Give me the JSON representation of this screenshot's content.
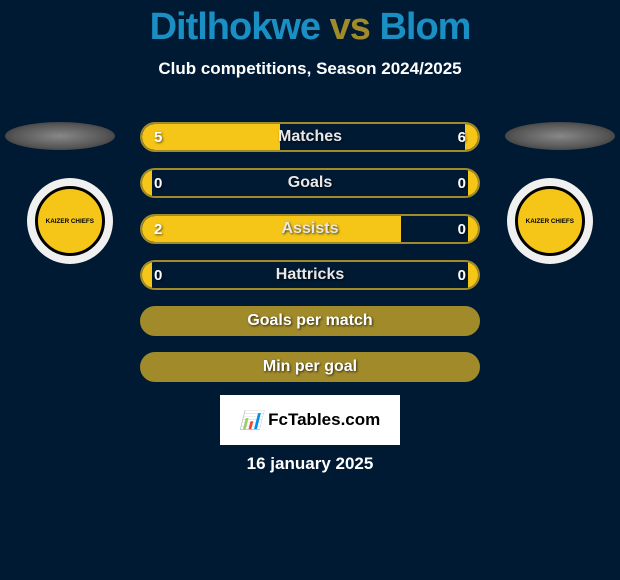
{
  "title": {
    "player1": "Ditlhokwe",
    "player1_color": "#1a8fc4",
    "vs": "vs",
    "vs_color": "#a08a2a",
    "player2": "Blom",
    "player2_color": "#1a8fc4"
  },
  "subtitle": "Club competitions, Season 2024/2025",
  "badges": {
    "left_text": "KAIZER CHIEFS",
    "right_text": "KAIZER CHIEFS",
    "outer_color": "#f0f0f0",
    "inner_color": "#f5c518",
    "border_color": "#000000"
  },
  "stats": {
    "rows": [
      {
        "label": "Matches",
        "left": "5",
        "right": "6",
        "left_pct": 41,
        "right_pct": 4,
        "show_values": true,
        "full": false
      },
      {
        "label": "Goals",
        "left": "0",
        "right": "0",
        "left_pct": 3,
        "right_pct": 3,
        "show_values": true,
        "full": false
      },
      {
        "label": "Assists",
        "left": "2",
        "right": "0",
        "left_pct": 77,
        "right_pct": 3,
        "show_values": true,
        "full": false
      },
      {
        "label": "Hattricks",
        "left": "0",
        "right": "0",
        "left_pct": 3,
        "right_pct": 3,
        "show_values": true,
        "full": false
      },
      {
        "label": "Goals per match",
        "left": "",
        "right": "",
        "left_pct": 0,
        "right_pct": 0,
        "show_values": false,
        "full": true
      },
      {
        "label": "Min per goal",
        "left": "",
        "right": "",
        "left_pct": 0,
        "right_pct": 0,
        "show_values": false,
        "full": true
      }
    ],
    "bar_color": "#f5c518",
    "border_color": "#a08a2a",
    "full_bg": "#a08a2a"
  },
  "fctables": {
    "icon": "📊",
    "text": "FcTables.com"
  },
  "date": "16 january 2025",
  "background_color": "#001a33"
}
